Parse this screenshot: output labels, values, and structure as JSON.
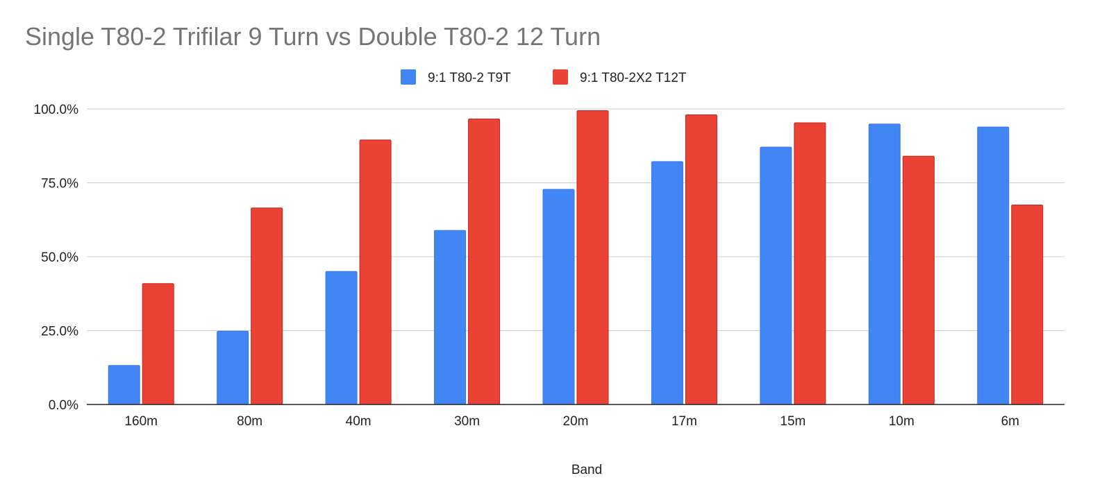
{
  "chart_data": {
    "type": "bar",
    "title": "Single T80-2 Trifilar 9 Turn vs Double T80-2 12 Turn",
    "xlabel": "Band",
    "ylabel": "",
    "categories": [
      "160m",
      "80m",
      "40m",
      "30m",
      "20m",
      "17m",
      "15m",
      "10m",
      "6m"
    ],
    "series": [
      {
        "name": "9:1 T80-2 T9T",
        "color": "#4285f4",
        "edge": "#3b78e7",
        "values": [
          13.2,
          24.8,
          45.0,
          58.9,
          72.8,
          82.2,
          87.1,
          94.9,
          93.9
        ]
      },
      {
        "name": "9:1 T80-2X2 T12T",
        "color": "#ea4335",
        "edge": "#c5221f",
        "values": [
          40.9,
          66.5,
          89.5,
          96.6,
          99.4,
          98.0,
          95.3,
          84.0,
          67.5
        ]
      }
    ],
    "ylim": [
      0,
      100
    ],
    "yticks": [
      0,
      25,
      50,
      75,
      100
    ],
    "ytick_labels": [
      "0.0%",
      "25.0%",
      "50.0%",
      "75.0%",
      "100.0%"
    ],
    "grid": true,
    "legend_position": "top-center"
  }
}
